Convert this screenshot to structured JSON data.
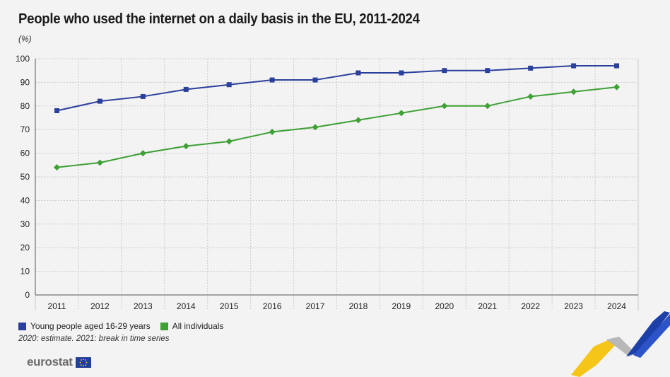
{
  "title": "People who used the internet on a daily basis in the EU, 2011-2024",
  "unit": "(%)",
  "note": "2020: estimate. 2021: break in time series",
  "logo": "eurostat",
  "colors": {
    "young": "#2b3f9c",
    "all": "#3ea035",
    "grid": "#c9c9c9",
    "axis": "#555555"
  },
  "chart_data": {
    "type": "line",
    "x": [
      "2011",
      "2012",
      "2013",
      "2014",
      "2015",
      "2016",
      "2017",
      "2018",
      "2019",
      "2020",
      "2021",
      "2022",
      "2023",
      "2024"
    ],
    "ylim": [
      0,
      100
    ],
    "yticks": [
      0,
      10,
      20,
      30,
      40,
      50,
      60,
      70,
      80,
      90,
      100
    ],
    "grid": true,
    "legend_position": "bottom-left",
    "series": [
      {
        "name": "Young people aged 16-29 years",
        "marker": "square",
        "color": "#2b3f9c",
        "values": [
          78,
          82,
          84,
          87,
          89,
          91,
          91,
          94,
          94,
          95,
          95,
          96,
          97,
          97
        ]
      },
      {
        "name": "All individuals",
        "marker": "diamond",
        "color": "#3ea035",
        "values": [
          54,
          56,
          60,
          63,
          65,
          69,
          71,
          74,
          77,
          80,
          80,
          84,
          86,
          88
        ]
      }
    ]
  }
}
